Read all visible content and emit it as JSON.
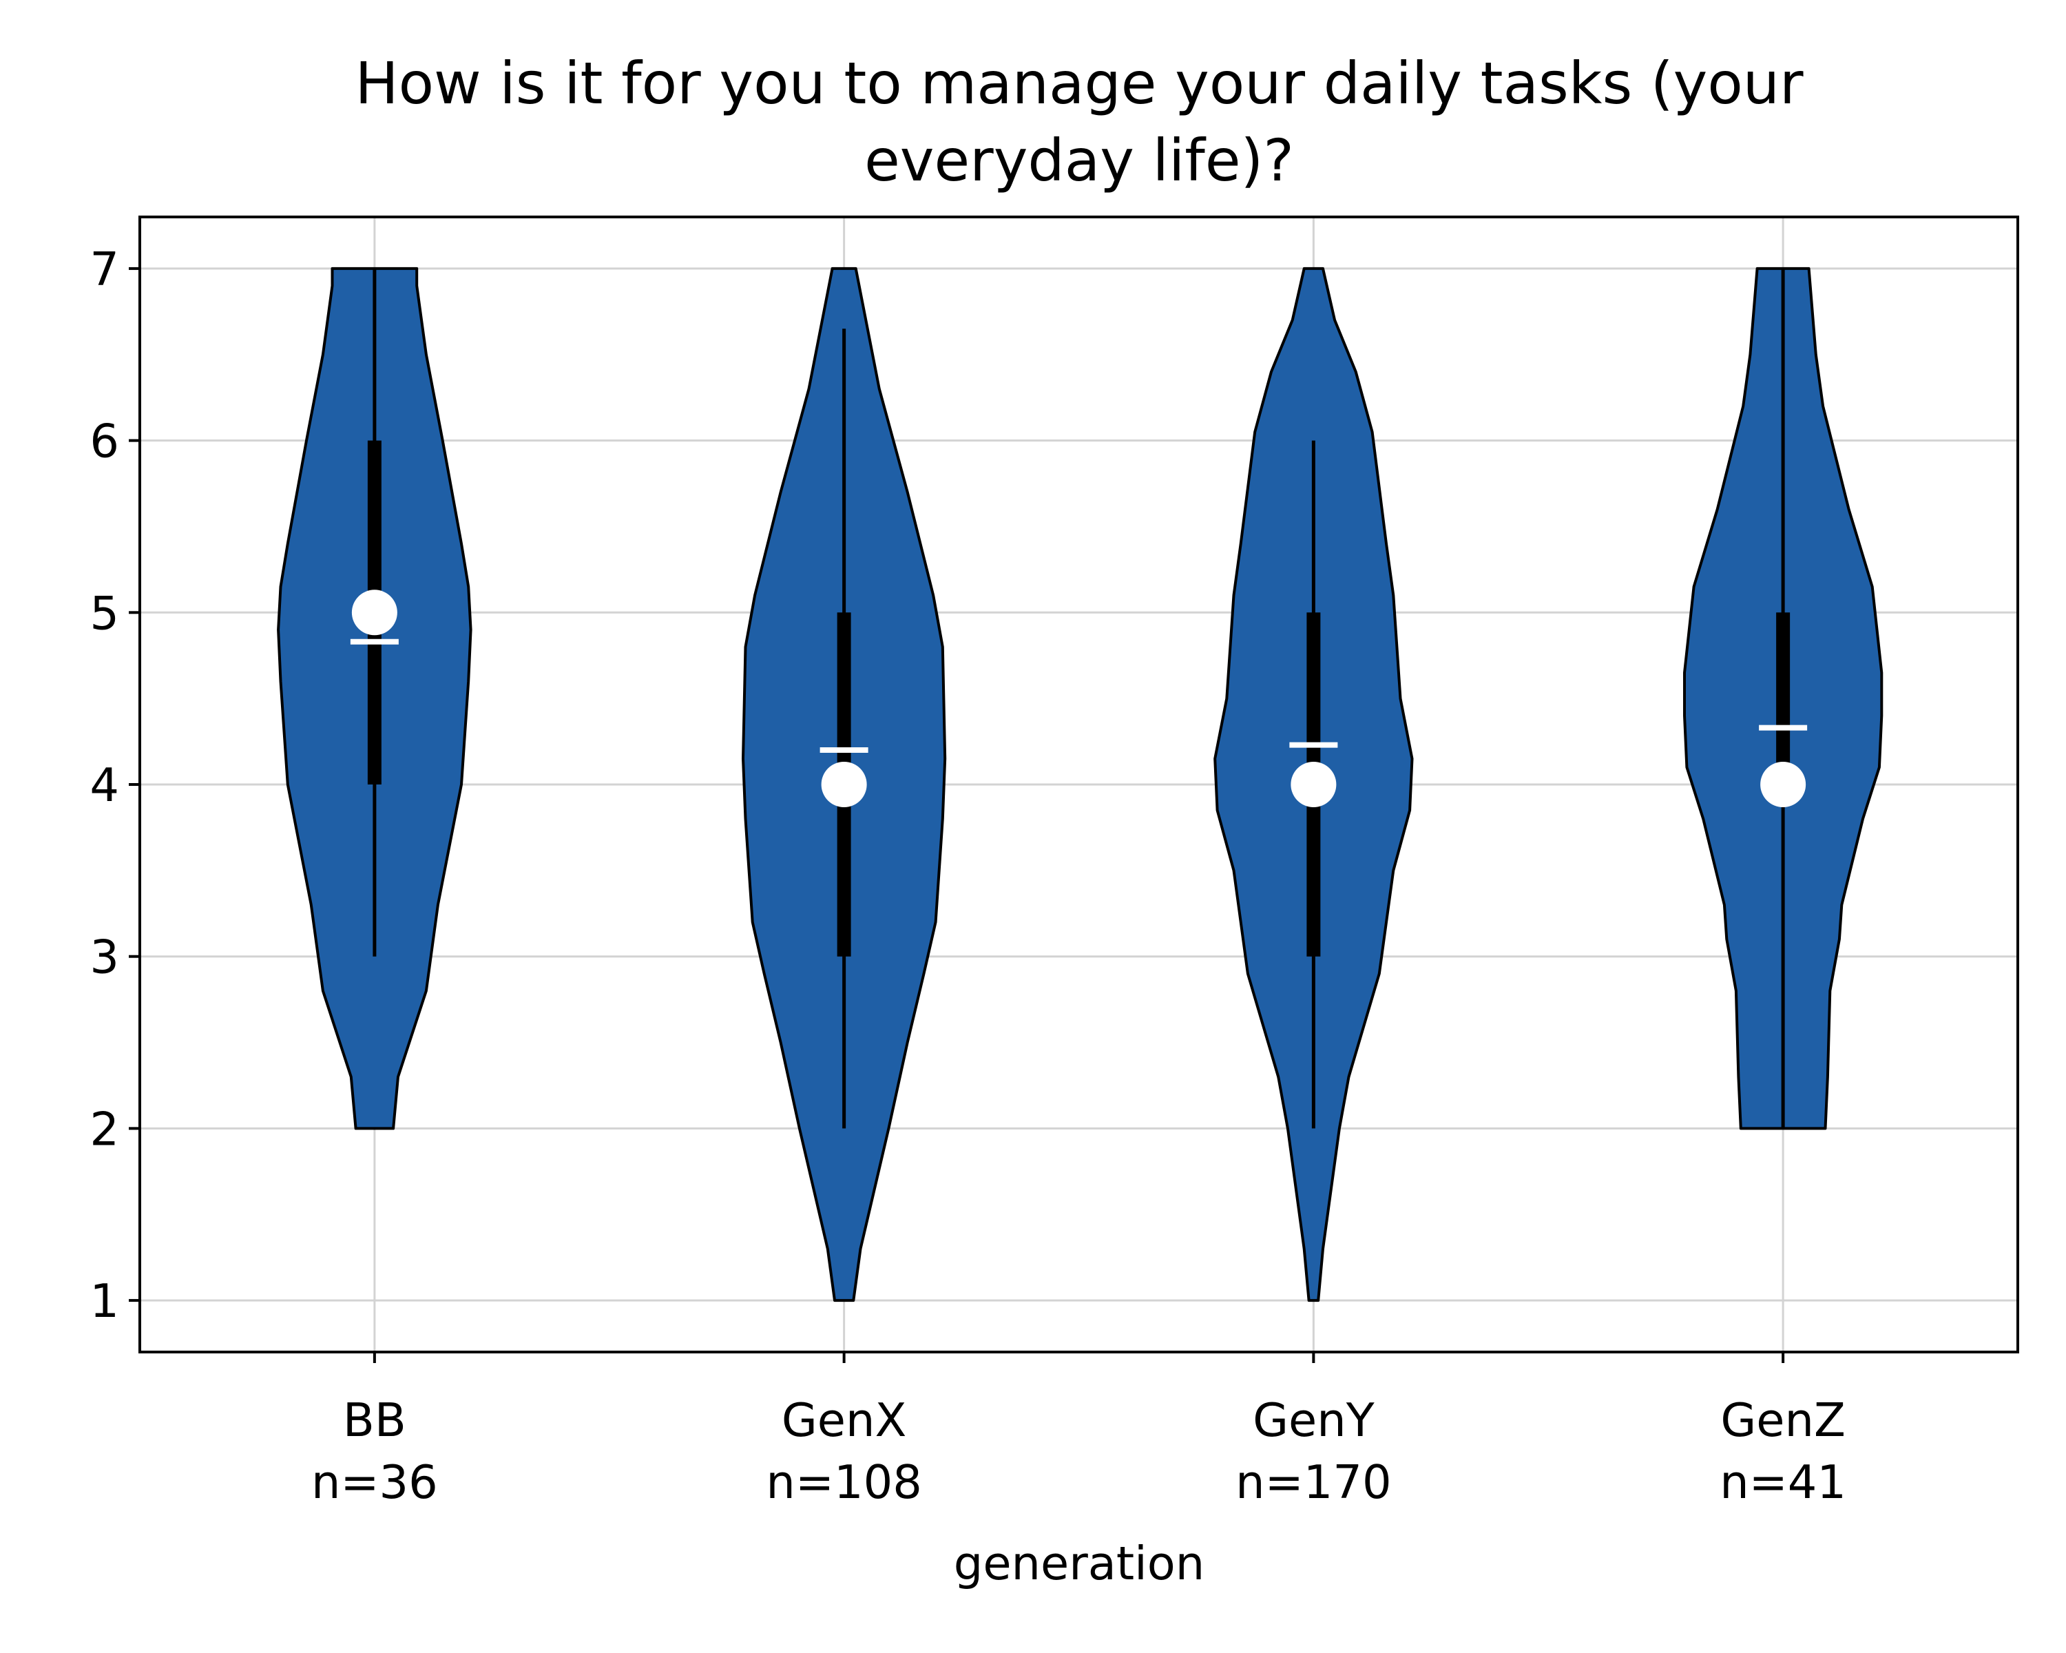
{
  "chart_data": {
    "type": "violin",
    "title_lines": [
      "How is it for you to manage your daily tasks (your",
      "everyday life)?"
    ],
    "xlabel": "generation",
    "ylabel": "",
    "ylim": [
      0.7,
      7.3
    ],
    "yticks": [
      1,
      2,
      3,
      4,
      5,
      6,
      7
    ],
    "grid": true,
    "colors": {
      "violin": "#1f5fa6",
      "edge": "#000000",
      "box": "#000000",
      "marker": "#ffffff",
      "grid": "#d3d3d3"
    },
    "groups": [
      {
        "name": "BB",
        "n_label": "n=36",
        "min": 2,
        "q1": 4,
        "median": 5,
        "q3": 6,
        "max": 7,
        "whisker_low": 3,
        "whisker_high": 7,
        "mean": 4.83,
        "density": [
          [
            2,
            0.08
          ],
          [
            2.3,
            0.1
          ],
          [
            2.8,
            0.22
          ],
          [
            3.3,
            0.27
          ],
          [
            4.0,
            0.37
          ],
          [
            4.6,
            0.4
          ],
          [
            4.9,
            0.41
          ],
          [
            5.15,
            0.4
          ],
          [
            5.4,
            0.37
          ],
          [
            6.0,
            0.29
          ],
          [
            6.5,
            0.22
          ],
          [
            6.9,
            0.18
          ],
          [
            7.0,
            0.18
          ]
        ]
      },
      {
        "name": "GenX",
        "n_label": "n=108",
        "min": 1,
        "q1": 3,
        "median": 4,
        "q3": 5,
        "max": 7,
        "whisker_low": 2,
        "whisker_high": 6.65,
        "mean": 4.2,
        "density": [
          [
            1.0,
            0.04
          ],
          [
            1.3,
            0.07
          ],
          [
            2.0,
            0.19
          ],
          [
            2.5,
            0.27
          ],
          [
            2.9,
            0.34
          ],
          [
            3.2,
            0.39
          ],
          [
            3.8,
            0.42
          ],
          [
            4.15,
            0.43
          ],
          [
            4.8,
            0.42
          ],
          [
            5.1,
            0.38
          ],
          [
            5.7,
            0.27
          ],
          [
            6.3,
            0.15
          ],
          [
            7.0,
            0.05
          ]
        ]
      },
      {
        "name": "GenY",
        "n_label": "n=170",
        "min": 1,
        "q1": 3,
        "median": 4,
        "q3": 5,
        "max": 7,
        "whisker_low": 2,
        "whisker_high": 6,
        "mean": 4.23,
        "density": [
          [
            1.0,
            0.02
          ],
          [
            1.3,
            0.04
          ],
          [
            2.0,
            0.11
          ],
          [
            2.3,
            0.15
          ],
          [
            2.9,
            0.28
          ],
          [
            3.5,
            0.34
          ],
          [
            3.85,
            0.41
          ],
          [
            4.15,
            0.42
          ],
          [
            4.5,
            0.37
          ],
          [
            5.1,
            0.34
          ],
          [
            5.4,
            0.31
          ],
          [
            6.05,
            0.25
          ],
          [
            6.4,
            0.18
          ],
          [
            6.7,
            0.09
          ],
          [
            7.0,
            0.04
          ]
        ]
      },
      {
        "name": "GenZ",
        "n_label": "n=41",
        "min": 2,
        "q1": 4,
        "median": 4,
        "q3": 5,
        "max": 7,
        "whisker_low": 2,
        "whisker_high": 7,
        "mean": 4.33,
        "density": [
          [
            2.0,
            0.18
          ],
          [
            2.3,
            0.19
          ],
          [
            2.8,
            0.2
          ],
          [
            3.1,
            0.24
          ],
          [
            3.3,
            0.25
          ],
          [
            3.8,
            0.34
          ],
          [
            4.1,
            0.41
          ],
          [
            4.4,
            0.42
          ],
          [
            4.65,
            0.42
          ],
          [
            4.9,
            0.4
          ],
          [
            5.15,
            0.38
          ],
          [
            5.6,
            0.28
          ],
          [
            6.2,
            0.17
          ],
          [
            6.5,
            0.14
          ],
          [
            7.0,
            0.11
          ]
        ]
      }
    ]
  }
}
